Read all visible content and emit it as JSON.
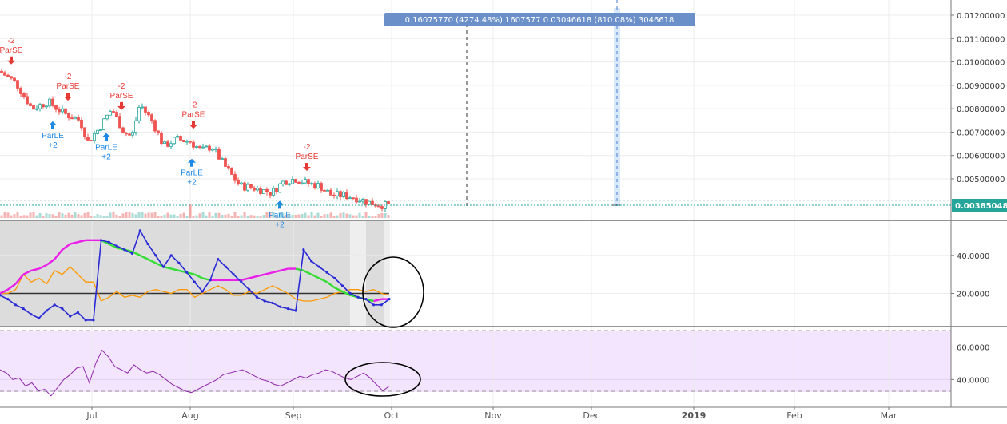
{
  "colors": {
    "up": "#26a69a",
    "down": "#ef5350",
    "buy_signal": "#1e88e5",
    "sell_signal": "#e53935",
    "adx_blue": "#2b2bd6",
    "adx_orange": "#ff9800",
    "adx_magenta": "#e91ee9",
    "adx_green": "#33dd33",
    "rsi_line": "#8e24aa",
    "rsi_band": "#f3e5fd",
    "price_tag": "#26a69a",
    "measure_tag": "#6b8fc8"
  },
  "measure_label": "0.16075770 (4274.48%) 1607577 0.03046618 (810.08%) 3046618",
  "current_price": "0.00385048",
  "price_axis": [
    "0.01200000",
    "0.01100000",
    "0.01000000",
    "0.00900000",
    "0.00800000",
    "0.00700000",
    "0.00600000",
    "0.00500000"
  ],
  "adx_axis": [
    "40.0000",
    "20.0000"
  ],
  "rsi_axis": [
    "60.0000",
    "40.0000"
  ],
  "time_axis": [
    "Jul",
    "Aug",
    "Sep",
    "Oct",
    "Nov",
    "Dec",
    "2019",
    "Feb",
    "Mar"
  ],
  "signals": [
    {
      "type": "sell",
      "qty": "-2",
      "label": "ParSE",
      "price": 0.00955
    },
    {
      "type": "sell",
      "qty": "-2",
      "label": "ParSE",
      "price": 0.008
    },
    {
      "type": "buy",
      "qty": "+2",
      "label": "ParLE",
      "price": 0.0076
    },
    {
      "type": "sell",
      "qty": "-2",
      "label": "ParSE",
      "price": 0.0076
    },
    {
      "type": "buy",
      "qty": "+2",
      "label": "ParLE",
      "price": 0.0071
    },
    {
      "type": "buy",
      "qty": "+2",
      "label": "ParLE",
      "price": 0.006
    },
    {
      "type": "sell",
      "qty": "-2",
      "label": "ParSE",
      "price": 0.0068
    },
    {
      "type": "buy",
      "qty": "+2",
      "label": "ParLE",
      "price": 0.0042
    },
    {
      "type": "sell",
      "qty": "-2",
      "label": "ParSE",
      "price": 0.005
    }
  ],
  "chart_data": [
    {
      "type": "candlestick",
      "ylim": [
        0.0038,
        0.0122
      ],
      "start_price": 0.0096,
      "end_price": 0.00385,
      "last_value": 0.00385048,
      "x_ticks": [
        "Jul",
        "Aug",
        "Sep",
        "Oct",
        "Nov",
        "Dec",
        "2019",
        "Feb",
        "Mar"
      ],
      "y_ticks": [
        0.012,
        0.011,
        0.01,
        0.009,
        0.008,
        0.007,
        0.006,
        0.005
      ]
    },
    {
      "type": "line",
      "panel": "ADX / DMI",
      "ylim": [
        3,
        58
      ],
      "hline": 20,
      "y_ticks": [
        40,
        20
      ],
      "series": [
        {
          "color": "blue",
          "values": [
            19,
            17,
            14,
            12,
            9,
            7,
            11,
            14,
            12,
            8,
            10,
            6,
            6,
            48,
            47,
            45,
            43,
            41,
            53,
            46,
            40,
            34,
            40,
            36,
            31,
            26,
            21,
            27,
            38,
            34,
            30,
            26,
            22,
            18,
            16,
            15,
            13,
            12,
            11,
            43,
            37,
            34,
            31,
            28,
            24,
            20,
            18,
            17,
            14,
            14,
            17
          ]
        },
        {
          "color": "orange",
          "values": [
            20,
            20,
            22,
            30,
            26,
            28,
            25,
            32,
            30,
            34,
            30,
            26,
            26,
            16,
            18,
            21,
            18,
            19,
            18,
            21,
            22,
            21,
            20,
            22,
            22,
            18,
            20,
            22,
            24,
            22,
            19,
            19,
            21,
            20,
            22,
            24,
            22,
            20,
            17,
            16,
            16,
            17,
            18,
            20,
            21,
            22,
            22,
            21,
            22,
            20,
            19
          ]
        },
        {
          "color": "magenta_green",
          "values": [
            20,
            22,
            25,
            30,
            32,
            33,
            35,
            38,
            43,
            46,
            47,
            48,
            48,
            48,
            46,
            44,
            43,
            42,
            40,
            38,
            36,
            34,
            33,
            32,
            31,
            30,
            28,
            27,
            27,
            27,
            27,
            27,
            28,
            29,
            30,
            31,
            32,
            33,
            33,
            32,
            30,
            28,
            26,
            23,
            21,
            19,
            18,
            17,
            16,
            17,
            17
          ]
        }
      ]
    },
    {
      "type": "line",
      "panel": "RSI",
      "ylim": [
        24,
        72
      ],
      "band": [
        30,
        70
      ],
      "y_ticks": [
        60,
        40
      ],
      "values": [
        46,
        44,
        40,
        41,
        36,
        38,
        33,
        34,
        30,
        35,
        40,
        43,
        47,
        48,
        38,
        50,
        58,
        54,
        48,
        46,
        44,
        49,
        46,
        44,
        45,
        43,
        40,
        37,
        35,
        33,
        32,
        34,
        36,
        38,
        40,
        43,
        44,
        45,
        46,
        44,
        42,
        40,
        39,
        37,
        36,
        38,
        40,
        42,
        41,
        43,
        44,
        46,
        45,
        43,
        41,
        40,
        42,
        44,
        41,
        37,
        33,
        36
      ]
    }
  ]
}
